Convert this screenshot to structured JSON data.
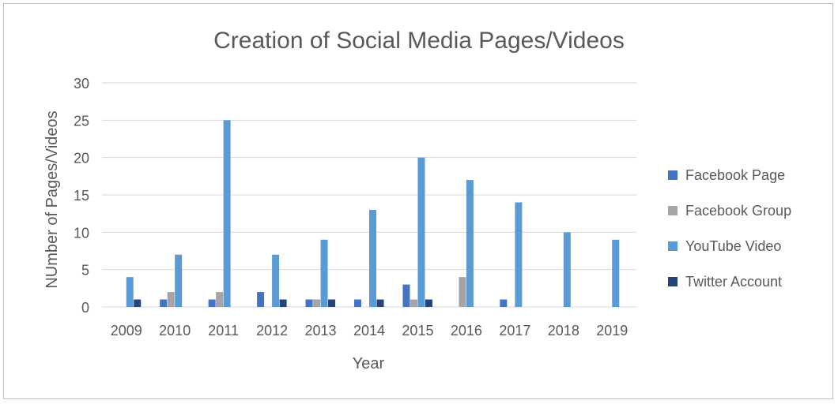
{
  "chart_data": {
    "type": "bar",
    "title": "Creation of Social Media Pages/Videos",
    "xlabel": "Year",
    "ylabel": "NUmber of Pages/Videos",
    "ylim": [
      0,
      30
    ],
    "yticks": [
      0,
      5,
      10,
      15,
      20,
      25,
      30
    ],
    "grid": true,
    "legend_position": "right",
    "categories": [
      "2009",
      "2010",
      "2011",
      "2012",
      "2013",
      "2014",
      "2015",
      "2016",
      "2017",
      "2018",
      "2019"
    ],
    "series": [
      {
        "name": "Facebook Page",
        "color": "#4472c4",
        "values": [
          0,
          1,
          1,
          2,
          1,
          1,
          3,
          0,
          1,
          0,
          0
        ]
      },
      {
        "name": "Facebook Group",
        "color": "#a5a5a5",
        "values": [
          0,
          2,
          2,
          0,
          1,
          0,
          1,
          4,
          0,
          0,
          0
        ]
      },
      {
        "name": "YouTube Video",
        "color": "#5b9bd5",
        "values": [
          4,
          7,
          25,
          7,
          9,
          13,
          20,
          17,
          14,
          10,
          9
        ]
      },
      {
        "name": "Twitter Account",
        "color": "#264478",
        "values": [
          1,
          0,
          0,
          1,
          1,
          1,
          1,
          0,
          0,
          0,
          0
        ]
      }
    ]
  }
}
